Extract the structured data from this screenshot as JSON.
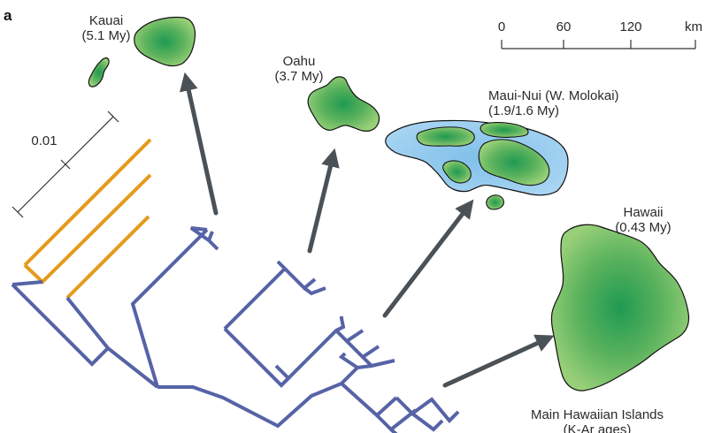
{
  "panel_label": "a",
  "scale_tree": {
    "label": "0.01"
  },
  "scale_map": {
    "ticks": [
      "0",
      "60",
      "120",
      "km"
    ]
  },
  "islands": {
    "kauai": {
      "name": "Kauai",
      "age": "(5.1 My)"
    },
    "oahu": {
      "name": "Oahu",
      "age": "(3.7 My)"
    },
    "maui": {
      "name": "Maui-Nui (W. Molokai)",
      "age": "(1.9/1.6 My)"
    },
    "hawaii": {
      "name": "Hawaii",
      "age": "(0.43 My)"
    }
  },
  "caption": {
    "line1": "Main Hawaiian Islands",
    "line2": "(K-Ar ages)"
  },
  "colors": {
    "tree_blue": "#5663a6",
    "tree_orange": "#e59a1c",
    "arrow": "#4b5257",
    "island_green": "#3d9b4b",
    "shelf_blue": "#8fc6e8"
  }
}
